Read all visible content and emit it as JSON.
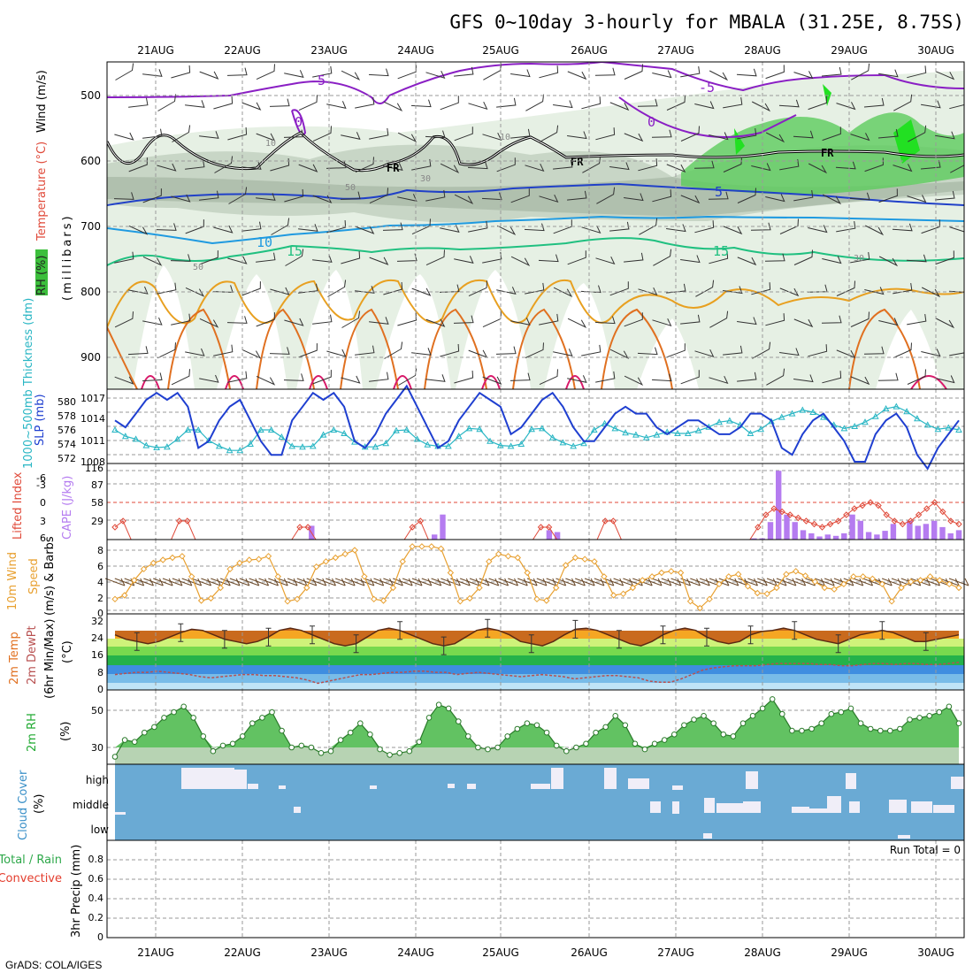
{
  "title": "GFS 0~10day 3-hourly for MBALA (31.25E, 8.75S)",
  "credit": "GrADS: COLA/IGES",
  "dates": [
    "21AUG",
    "22AUG",
    "23AUG",
    "24AUG",
    "25AUG",
    "26AUG",
    "27AUG",
    "28AUG",
    "29AUG",
    "30AUG"
  ],
  "colors": {
    "slp": "#1f3fd0",
    "thickness": "#29b6c4",
    "cape_bar": "#b57cf0",
    "lifted": "#e04a3a",
    "wind": "#e8a030",
    "temp_fill": "#f5a623",
    "rh_fill": "#5fbf5f",
    "cloud_bg": "#6aaad4",
    "rain_total": "#2ea84a",
    "rain_conv": "#e33c2c"
  },
  "panels": {
    "upper": {
      "ylabel_rh": "RH (%)",
      "ylabel_temp": "Temperature (°C)",
      "ylabel_wind": "Wind (m/s)",
      "ylabel_mb": "(millibars)",
      "ticks": [
        "500",
        "600",
        "700",
        "800",
        "900"
      ],
      "labels": {
        "m5a": "-5",
        "m5b": "-5",
        "z1": "0",
        "z2": "0",
        "p5": "5",
        "p10": "10",
        "p15a": "15",
        "p15b": "15",
        "fr1": "FR",
        "fr2": "FR",
        "fr3": "FR",
        "r10a": "10",
        "r10b": "10",
        "r30": "30",
        "r50": "50",
        "r50b": "50",
        "r30b": "30"
      }
    },
    "slp": {
      "ylabel_thick": "1000~500mb Thickness (dm)",
      "ylabel_slp": "SLP (mb)",
      "ticks_left": [
        "580",
        "578",
        "576",
        "574",
        "572"
      ],
      "ticks_right": [
        "1017",
        "1014",
        "1011",
        "1008"
      ]
    },
    "cape": {
      "ylabel_li": "Lifted Index",
      "ylabel_cape": "CAPE (J/kg)",
      "ticks_left": [
        "-6",
        "-3",
        "0",
        "3",
        "6"
      ],
      "ticks_right": [
        "116",
        "87",
        "58",
        "29"
      ]
    },
    "wind10": {
      "ylabel1": "10m Wind",
      "ylabel2": "Speed",
      "ylabel3": "(m/s) & Barbs",
      "ticks": [
        "8",
        "6",
        "4",
        "2",
        "0"
      ]
    },
    "temp2m": {
      "ylabel1": "2m Temp",
      "ylabel2": "2m DewPt",
      "ylabel3": "(6hr Min/Max)",
      "ylabel4": "(°C)",
      "ticks": [
        "32",
        "24",
        "16",
        "8",
        "0"
      ]
    },
    "rh2m": {
      "ylabel1": "2m RH",
      "ylabel2": "(%)",
      "ticks": [
        "50",
        "30"
      ]
    },
    "cloud": {
      "ylabel1": "Cloud Cover",
      "ylabel2": "(%)",
      "levels": [
        "high",
        "middle",
        "low"
      ]
    },
    "precip": {
      "ylabel_total": "Total / Rain",
      "ylabel_conv": "Convective",
      "ylabel_main": "3hr Precip (mm)",
      "run_total": "Run Total = 0",
      "ticks": [
        "0.8",
        "0.6",
        "0.4",
        "0.2",
        "0"
      ]
    }
  },
  "chart_data": [
    {
      "type": "line",
      "title": "",
      "series": [
        {
          "name": "SLP",
          "unit": "mb",
          "values": [
            1014,
            1013,
            1015,
            1017,
            1018,
            1017,
            1018,
            1016,
            1010,
            1011,
            1014,
            1016,
            1017,
            1014,
            1011,
            1009,
            1009,
            1014,
            1016,
            1018,
            1017,
            1018,
            1016,
            1011,
            1010,
            1012,
            1015,
            1017,
            1019,
            1016,
            1013,
            1010,
            1011,
            1014,
            1016,
            1018,
            1017,
            1016,
            1012,
            1013,
            1015,
            1017,
            1018,
            1016,
            1013,
            1011,
            1011,
            1013,
            1015,
            1016,
            1015,
            1015,
            1013,
            1012,
            1013,
            1014,
            1014,
            1013,
            1012,
            1012,
            1013,
            1015,
            1015,
            1014,
            1010,
            1009,
            1012,
            1014,
            1015,
            1013,
            1011,
            1008,
            1008,
            1012,
            1014,
            1015,
            1013,
            1009,
            1007,
            1010,
            1012,
            1014
          ]
        },
        {
          "name": "Thickness",
          "unit": "dm",
          "values": [
            575.5,
            574.6,
            574.2,
            573.3,
            573,
            573.1,
            574.2,
            575.5,
            575.5,
            574,
            573.2,
            572.6,
            572.6,
            573.5,
            575.5,
            575.5,
            574.5,
            573.2,
            573.1,
            573.2,
            574.8,
            575.5,
            575,
            573.8,
            573.1,
            573.1,
            573.6,
            575.4,
            575.5,
            574.2,
            573.4,
            573.2,
            573.2,
            574.6,
            575.7,
            575.6,
            573.9,
            573.3,
            573.2,
            573.5,
            575.6,
            575.7,
            574.4,
            573.7,
            573.2,
            573.6,
            575.5,
            576.4,
            575.7,
            575.1,
            574.8,
            574.4,
            574.8,
            575.2,
            575,
            575,
            575.4,
            575.9,
            576.6,
            576.8,
            576.2,
            575,
            575.6,
            576.7,
            577.3,
            577.8,
            578.3,
            578,
            577.3,
            576.2,
            575.7,
            576,
            576.6,
            577.4,
            578.5,
            578.8,
            578.1,
            577.1,
            576.2,
            575.6,
            575.8,
            575.5
          ]
        }
      ]
    },
    {
      "type": "bar",
      "title": "",
      "series": [
        {
          "name": "CAPE",
          "unit": "J/kg",
          "values": [
            0,
            0,
            0,
            0,
            0,
            0,
            0,
            0,
            0,
            0,
            0,
            0,
            0,
            0,
            0,
            0,
            0,
            0,
            0,
            0,
            0,
            0,
            0,
            0,
            22,
            0,
            0,
            0,
            0,
            0,
            0,
            0,
            0,
            0,
            0,
            0,
            0,
            0,
            0,
            8,
            40,
            0,
            0,
            0,
            0,
            0,
            0,
            0,
            0,
            0,
            0,
            0,
            0,
            15,
            12,
            0,
            0,
            0,
            0,
            0,
            0,
            0,
            0,
            0,
            0,
            0,
            0,
            0,
            0,
            0,
            0,
            0,
            0,
            0,
            0,
            0,
            0,
            0,
            2,
            2,
            28,
            110,
            40,
            28,
            15,
            10,
            5,
            8,
            6,
            10,
            40,
            30,
            12,
            8,
            14,
            25,
            0,
            30,
            22,
            25,
            30,
            20,
            10,
            15
          ]
        },
        {
          "name": "Lifted Index",
          "values": [
            4,
            3,
            6,
            6,
            6,
            6,
            6,
            6,
            3,
            3,
            6,
            6,
            6,
            6,
            6,
            6,
            6,
            6,
            6,
            6,
            6,
            6,
            6,
            4,
            4,
            6,
            6,
            6,
            6,
            6,
            6,
            6,
            6,
            6,
            6,
            6,
            6,
            4,
            3,
            6,
            6,
            6,
            6,
            6,
            6,
            6,
            6,
            6,
            6,
            6,
            6,
            6,
            6,
            4,
            4,
            6,
            6,
            6,
            6,
            6,
            6,
            3,
            3,
            6,
            6,
            6,
            6,
            6,
            6,
            6,
            6,
            6,
            6,
            6,
            6,
            6,
            6,
            6,
            6,
            6,
            4,
            2,
            1,
            1.5,
            2,
            2.5,
            3,
            3.5,
            4,
            3.5,
            3,
            2,
            1,
            0.5,
            0,
            0.5,
            2,
            3,
            3.5,
            3,
            2,
            1,
            0,
            1.5,
            3,
            3.5
          ]
        }
      ]
    },
    {
      "type": "line",
      "title": "",
      "series": [
        {
          "name": "10m Wind Speed",
          "unit": "m/s",
          "values": [
            1.5,
            2,
            4,
            5.5,
            6.3,
            6.7,
            7,
            7.2,
            4.5,
            1.3,
            1.6,
            3,
            5.5,
            6.3,
            6.7,
            6.8,
            7.2,
            4.5,
            1.2,
            1.5,
            3,
            5.8,
            6.5,
            7,
            7.5,
            8,
            4.5,
            1.5,
            1.3,
            3,
            6.5,
            8.5,
            8.5,
            8.5,
            8.2,
            5,
            1.2,
            1.6,
            3,
            6.5,
            7.5,
            7.2,
            7,
            5,
            1.5,
            1.3,
            3,
            6,
            7,
            6.8,
            6.5,
            4.5,
            2,
            2.2,
            3,
            4,
            4.5,
            5,
            5.2,
            5,
            1.2,
            0.3,
            1.5,
            3.5,
            4.5,
            4.8,
            3.2,
            2.3,
            2.2,
            3,
            4.8,
            5.2,
            4.6,
            3.8,
            3,
            2.8,
            3.5,
            4.5,
            4.5,
            4.2,
            3.5,
            1.2,
            3,
            3.8,
            4,
            4.5,
            4,
            3.5,
            3
          ]
        }
      ]
    },
    {
      "type": "area",
      "title": "",
      "series": [
        {
          "name": "2m Temp",
          "unit": "°C",
          "values": [
            25,
            23,
            22,
            21,
            22,
            24,
            26,
            27.5,
            27,
            25,
            23,
            22,
            21,
            22,
            24,
            27,
            28,
            27,
            25,
            23,
            21,
            20,
            21,
            24,
            27,
            28,
            27,
            25,
            23,
            21,
            20,
            21,
            24,
            27,
            28,
            27,
            25,
            22,
            21,
            20,
            22,
            25,
            27.5,
            28,
            27,
            25,
            23,
            21,
            20,
            22,
            25,
            27,
            28,
            27,
            24,
            22,
            21,
            22,
            25,
            26.5,
            27,
            28,
            27,
            25,
            23,
            22,
            21,
            23,
            25,
            26,
            27,
            26,
            24,
            22,
            22,
            23,
            24,
            25
          ]
        },
        {
          "name": "2m DewPt",
          "unit": "°C",
          "values": [
            7,
            7.5,
            8,
            8,
            8.5,
            8,
            7.5,
            7,
            6,
            5.5,
            6,
            6.5,
            7,
            7,
            6.5,
            6.5,
            6,
            5.5,
            4.5,
            3,
            4,
            5,
            6,
            7,
            7,
            7.5,
            8,
            8,
            8.5,
            8.5,
            8,
            8,
            7,
            7.5,
            8,
            7.5,
            7,
            6.5,
            6,
            6.5,
            7,
            6.5,
            6,
            5,
            5.5,
            6,
            6.5,
            6.5,
            6,
            5.5,
            4,
            3.5,
            3.5,
            5,
            7,
            9,
            10,
            10.5,
            11,
            11,
            11,
            11.5,
            12,
            12,
            12,
            12,
            11.5,
            11.5,
            11,
            11,
            11.5,
            12,
            12,
            11.5,
            12,
            12,
            11.5,
            11.5,
            12,
            12.5
          ]
        }
      ]
    },
    {
      "type": "area",
      "title": "",
      "series": [
        {
          "name": "2m RH",
          "unit": "%",
          "values": [
            25,
            34,
            33,
            38,
            41,
            46,
            49,
            52,
            46,
            36,
            28,
            31,
            32,
            36,
            43,
            46,
            49,
            39,
            30,
            31,
            30,
            27,
            28,
            34,
            38,
            43,
            37,
            29,
            26,
            27,
            28,
            33,
            46,
            53,
            51,
            44,
            36,
            30,
            29,
            30,
            36,
            40,
            43,
            42,
            38,
            31,
            28,
            30,
            32,
            38,
            41,
            47,
            42,
            32,
            29,
            32,
            34,
            37,
            42,
            45,
            47,
            43,
            37,
            36,
            43,
            47,
            51,
            56,
            48,
            39,
            39,
            40,
            43,
            48,
            49,
            51,
            43,
            40,
            39,
            39,
            40,
            45,
            46,
            47,
            49,
            52,
            43
          ]
        }
      ]
    },
    {
      "type": "bar",
      "title": "",
      "series": [
        {
          "name": "high",
          "values": []
        },
        {
          "name": "middle",
          "values": []
        },
        {
          "name": "low",
          "values": []
        }
      ]
    },
    {
      "type": "bar",
      "title": "",
      "series": [
        {
          "name": "3hr Precip",
          "unit": "mm",
          "values": [
            0,
            0,
            0,
            0,
            0,
            0,
            0,
            0,
            0,
            0
          ]
        }
      ]
    }
  ]
}
